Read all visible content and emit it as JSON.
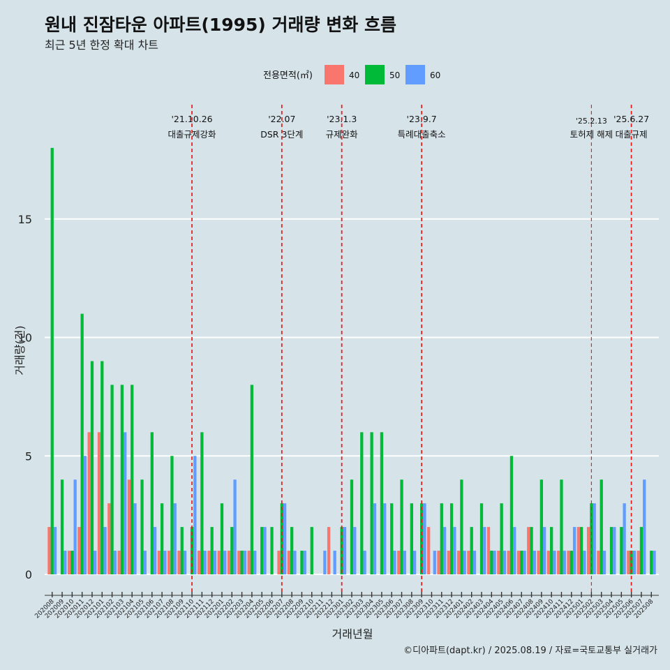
{
  "chart_data": {
    "type": "bar",
    "title": "원내 진잠타운 아파트(1995) 거래량 변화 흐름",
    "subtitle": "최근 5년 한정 확대 차트",
    "xlabel": "거래년월",
    "ylabel": "거래량(건)",
    "ylim": [
      0,
      18.5
    ],
    "yticks": [
      0,
      5,
      10,
      15
    ],
    "legend": {
      "title": "전용면적(㎡)",
      "position": "top",
      "items": [
        {
          "name": "40",
          "color": "#f8766d"
        },
        {
          "name": "50",
          "color": "#00ba38"
        },
        {
          "name": "60",
          "color": "#619cff"
        }
      ]
    },
    "categories": [
      "202008",
      "202009",
      "202010",
      "202011",
      "202012",
      "202101",
      "202102",
      "202103",
      "202104",
      "202105",
      "202106",
      "202107",
      "202108",
      "202109",
      "202110",
      "202111",
      "202112",
      "202201",
      "202202",
      "202203",
      "202204",
      "202205",
      "202206",
      "202207",
      "202208",
      "202209",
      "202210",
      "202211",
      "202212",
      "202301",
      "202302",
      "202303",
      "202304",
      "202305",
      "202306",
      "202307",
      "202308",
      "202309",
      "202310",
      "202311",
      "202312",
      "202401",
      "202402",
      "202403",
      "202404",
      "202405",
      "202406",
      "202407",
      "202408",
      "202409",
      "202410",
      "202411",
      "202412",
      "202501",
      "202502",
      "202503",
      "202504",
      "202505",
      "202506",
      "202507",
      "202508"
    ],
    "series": [
      {
        "name": "40",
        "color": "#f8766d",
        "values": [
          2,
          0,
          1,
          2,
          6,
          6,
          3,
          1,
          4,
          0,
          0,
          1,
          1,
          1,
          0,
          1,
          1,
          1,
          1,
          1,
          1,
          0,
          0,
          1,
          1,
          0,
          0,
          0,
          2,
          0,
          0,
          0,
          0,
          0,
          0,
          1,
          0,
          0,
          2,
          1,
          1,
          1,
          1,
          0,
          2,
          1,
          1,
          1,
          2,
          1,
          1,
          1,
          1,
          2,
          2,
          1,
          0,
          0,
          1,
          1,
          0
        ]
      },
      {
        "name": "50",
        "color": "#00ba38",
        "values": [
          18,
          4,
          1,
          11,
          9,
          9,
          8,
          8,
          8,
          4,
          6,
          3,
          5,
          2,
          2,
          6,
          2,
          3,
          2,
          1,
          8,
          2,
          2,
          3,
          2,
          1,
          2,
          0,
          0,
          2,
          4,
          6,
          6,
          6,
          3,
          4,
          3,
          3,
          0,
          3,
          3,
          4,
          2,
          3,
          1,
          3,
          5,
          1,
          2,
          4,
          2,
          4,
          1,
          2,
          3,
          4,
          2,
          2,
          1,
          2,
          1
        ]
      },
      {
        "name": "60",
        "color": "#619cff",
        "values": [
          2,
          1,
          4,
          5,
          1,
          2,
          1,
          6,
          3,
          1,
          2,
          1,
          3,
          1,
          5,
          1,
          1,
          1,
          4,
          1,
          1,
          2,
          0,
          3,
          1,
          1,
          0,
          1,
          1,
          2,
          2,
          1,
          3,
          3,
          1,
          1,
          1,
          3,
          1,
          2,
          2,
          1,
          1,
          2,
          1,
          1,
          2,
          1,
          1,
          2,
          1,
          1,
          2,
          1,
          3,
          1,
          2,
          3,
          1,
          4,
          1
        ]
      }
    ],
    "events": [
      {
        "date": "'21.10.26",
        "label": "대출규제강화",
        "category": "202110"
      },
      {
        "date": "'22.07",
        "label": "DSR 3단계",
        "category": "202207"
      },
      {
        "date": "'23.1.3",
        "label": "규제완화",
        "category": "202301"
      },
      {
        "date": "'23.9.7",
        "label": "특례대출축소",
        "category": "202309"
      },
      {
        "date": "'25.2.13",
        "label": "토허제 해제",
        "category": "202502"
      },
      {
        "date": "'25.6.27",
        "label": "대출규제",
        "category": "202506"
      }
    ],
    "grid": true,
    "background": "#d6e4ea",
    "event_line_color": "#e8211f"
  },
  "caption": "©디아파트(dapt.kr) / 2025.08.19 / 자료=국토교통부 실거래가"
}
